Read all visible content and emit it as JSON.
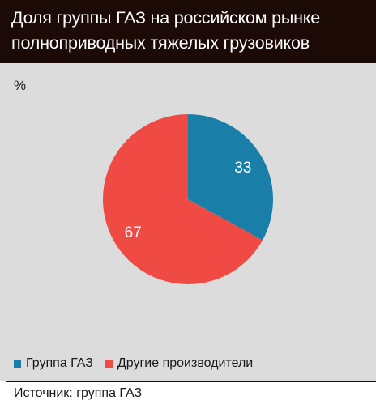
{
  "header": {
    "title_line1": "Доля группы ГАЗ на российском рынке",
    "title_line2": "полноприводных тяжелых грузовиков"
  },
  "unit_label": "%",
  "colors": {
    "header_bg": "#1b0a06",
    "panel_bg": "#dcdcdc",
    "gaz": "#1a7fa8",
    "others": "#f04a45"
  },
  "chart_data": {
    "type": "pie",
    "title": "Доля группы ГАЗ на российском рынке полноприводных тяжелых грузовиков",
    "unit": "%",
    "categories": [
      "Группа ГАЗ",
      "Другие производители"
    ],
    "values": [
      33,
      67
    ],
    "legend_position": "bottom-left"
  },
  "source": "Источник: группа ГАЗ"
}
